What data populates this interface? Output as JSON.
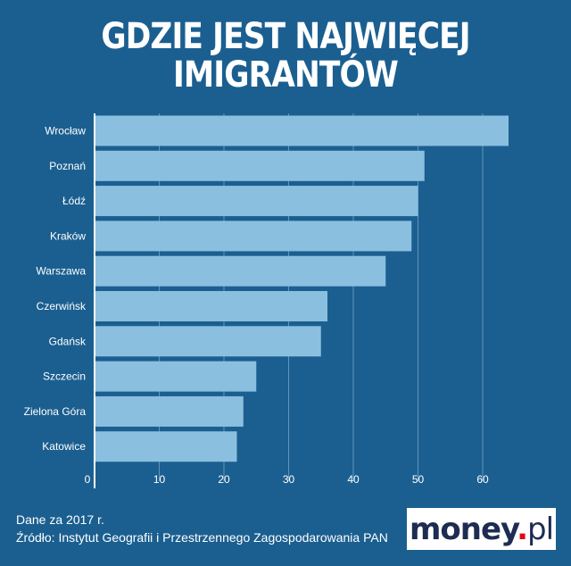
{
  "header": {
    "title_line1": "GDZIE JEST NAJWIĘCEJ",
    "title_line2": "IMIGRANTÓW"
  },
  "chart_data": {
    "type": "bar",
    "orientation": "horizontal",
    "categories": [
      "Wrocław",
      "Poznań",
      "Łódź",
      "Kraków",
      "Warszawa",
      "Czerwińsk",
      "Gdańsk",
      "Szczecin",
      "Zielona Góra",
      "Katowice"
    ],
    "values": [
      64,
      51,
      50,
      49,
      45,
      36,
      35,
      25,
      23,
      22
    ],
    "xlim": [
      0,
      70
    ],
    "xticks": [
      0,
      10,
      20,
      30,
      40,
      50,
      60
    ],
    "grid": "vertical",
    "colors": {
      "bar": "#8bbfe0",
      "background": "#1b5f90",
      "grid": "#5f95bd"
    }
  },
  "footer": {
    "note": "Dane za 2017 r.",
    "source": "Źródło: Instytut Geografii i Przestrzennego Zagospodarowania PAN"
  },
  "logo": {
    "brand": "money",
    "dot": ".",
    "tld": "pl"
  }
}
